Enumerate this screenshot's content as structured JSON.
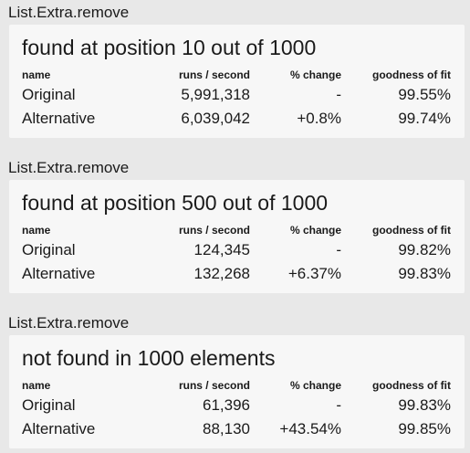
{
  "benchmarks": [
    {
      "group_label": "List.Extra.remove",
      "title": "found at position 10 out of 1000",
      "columns": [
        "name",
        "runs / second",
        "% change",
        "goodness of fit"
      ],
      "rows": [
        {
          "name": "Original",
          "runs": "5,991,318",
          "change": "-",
          "fit": "99.55%"
        },
        {
          "name": "Alternative",
          "runs": "6,039,042",
          "change": "+0.8%",
          "fit": "99.74%"
        }
      ]
    },
    {
      "group_label": "List.Extra.remove",
      "title": "found at position 500 out of 1000",
      "columns": [
        "name",
        "runs / second",
        "% change",
        "goodness of fit"
      ],
      "rows": [
        {
          "name": "Original",
          "runs": "124,345",
          "change": "-",
          "fit": "99.82%"
        },
        {
          "name": "Alternative",
          "runs": "132,268",
          "change": "+6.37%",
          "fit": "99.83%"
        }
      ]
    },
    {
      "group_label": "List.Extra.remove",
      "title": "not found in 1000 elements",
      "columns": [
        "name",
        "runs / second",
        "% change",
        "goodness of fit"
      ],
      "rows": [
        {
          "name": "Original",
          "runs": "61,396",
          "change": "-",
          "fit": "99.83%"
        },
        {
          "name": "Alternative",
          "runs": "88,130",
          "change": "+43.54%",
          "fit": "99.85%"
        }
      ]
    }
  ]
}
